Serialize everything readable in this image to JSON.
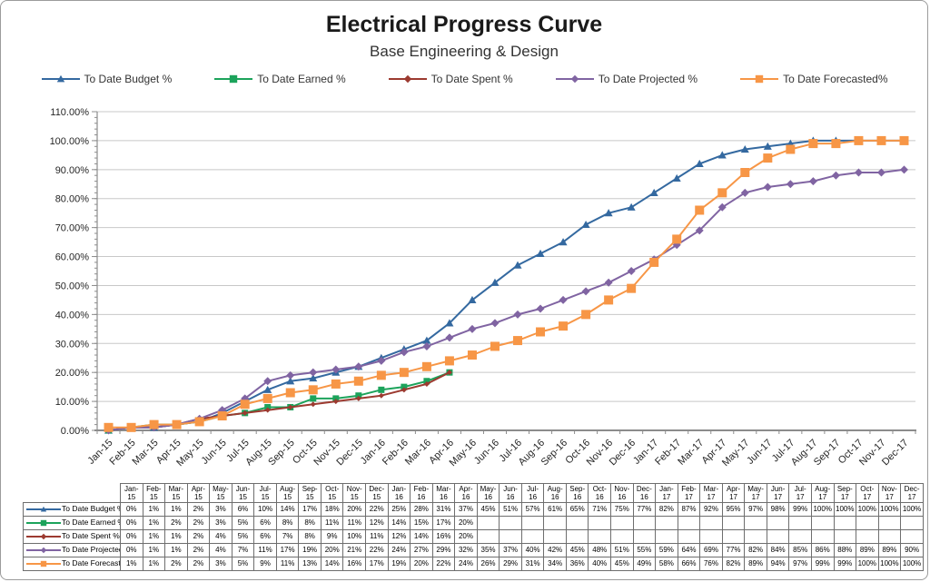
{
  "chart_data": {
    "type": "line",
    "title": "Electrical Progress Curve",
    "subtitle": "Base Engineering & Design",
    "legend_position": "top",
    "grid": true,
    "data_table_shown": true,
    "value_suffix": "%",
    "y_axis": {
      "min": 0,
      "max": 110,
      "major_step": 10,
      "minor_step": 2,
      "tick_labels": [
        "0.00%",
        "10.00%",
        "20.00%",
        "30.00%",
        "40.00%",
        "50.00%",
        "60.00%",
        "70.00%",
        "80.00%",
        "90.00%",
        "100.00%",
        "110.00%"
      ]
    },
    "categories": [
      "Jan-15",
      "Feb-15",
      "Mar-15",
      "Apr-15",
      "May-15",
      "Jun-15",
      "Jul-15",
      "Aug-15",
      "Sep-15",
      "Oct-15",
      "Nov-15",
      "Dec-15",
      "Jan-16",
      "Feb-16",
      "Mar-16",
      "Apr-16",
      "May-16",
      "Jun-16",
      "Jul-16",
      "Aug-16",
      "Sep-16",
      "Oct-16",
      "Nov-16",
      "Dec-16",
      "Jan-17",
      "Feb-17",
      "Mar-17",
      "Apr-17",
      "May-17",
      "Jun-17",
      "Jul-17",
      "Aug-17",
      "Sep-17",
      "Oct-17",
      "Nov-17",
      "Dec-17"
    ],
    "series": [
      {
        "name": "To Date Budget %",
        "color": "#3469A0",
        "marker": "triangle",
        "values": [
          0,
          1,
          1,
          2,
          3,
          6,
          10,
          14,
          17,
          18,
          20,
          22,
          25,
          28,
          31,
          37,
          45,
          51,
          57,
          61,
          65,
          71,
          75,
          77,
          82,
          87,
          92,
          95,
          97,
          98,
          99,
          100,
          100,
          100,
          100,
          100
        ]
      },
      {
        "name": "To Date Earned %",
        "color": "#1CA35B",
        "marker": "square",
        "values": [
          0,
          1,
          2,
          2,
          3,
          5,
          6,
          8,
          8,
          11,
          11,
          12,
          14,
          15,
          17,
          20,
          null,
          null,
          null,
          null,
          null,
          null,
          null,
          null,
          null,
          null,
          null,
          null,
          null,
          null,
          null,
          null,
          null,
          null,
          null,
          null
        ]
      },
      {
        "name": "To Date Spent %",
        "color": "#9C3A30",
        "marker": "diamond",
        "values": [
          0,
          1,
          1,
          2,
          4,
          5,
          6,
          7,
          8,
          9,
          10,
          11,
          12,
          14,
          16,
          20,
          null,
          null,
          null,
          null,
          null,
          null,
          null,
          null,
          null,
          null,
          null,
          null,
          null,
          null,
          null,
          null,
          null,
          null,
          null,
          null
        ]
      },
      {
        "name": "To Date Projected %",
        "color": "#8064A2",
        "marker": "diamond",
        "values": [
          0,
          1,
          1,
          2,
          4,
          7,
          11,
          17,
          19,
          20,
          21,
          22,
          24,
          27,
          29,
          32,
          35,
          37,
          40,
          42,
          45,
          48,
          51,
          55,
          59,
          64,
          69,
          77,
          82,
          84,
          85,
          86,
          88,
          89,
          89,
          90
        ]
      },
      {
        "name": "To Date Forecasted%",
        "color": "#F79646",
        "marker": "square",
        "values": [
          1,
          1,
          2,
          2,
          3,
          5,
          9,
          11,
          13,
          14,
          16,
          17,
          19,
          20,
          22,
          24,
          26,
          29,
          31,
          34,
          36,
          40,
          45,
          49,
          58,
          66,
          76,
          82,
          89,
          94,
          97,
          99,
          99,
          100,
          100,
          100
        ]
      }
    ],
    "colors": {
      "gridline": "#C8C8C8",
      "axis": "#8C8C8C",
      "tick": "#8C8C8C",
      "axis_text": "#262626",
      "table_border": "#6E6E6E"
    }
  }
}
